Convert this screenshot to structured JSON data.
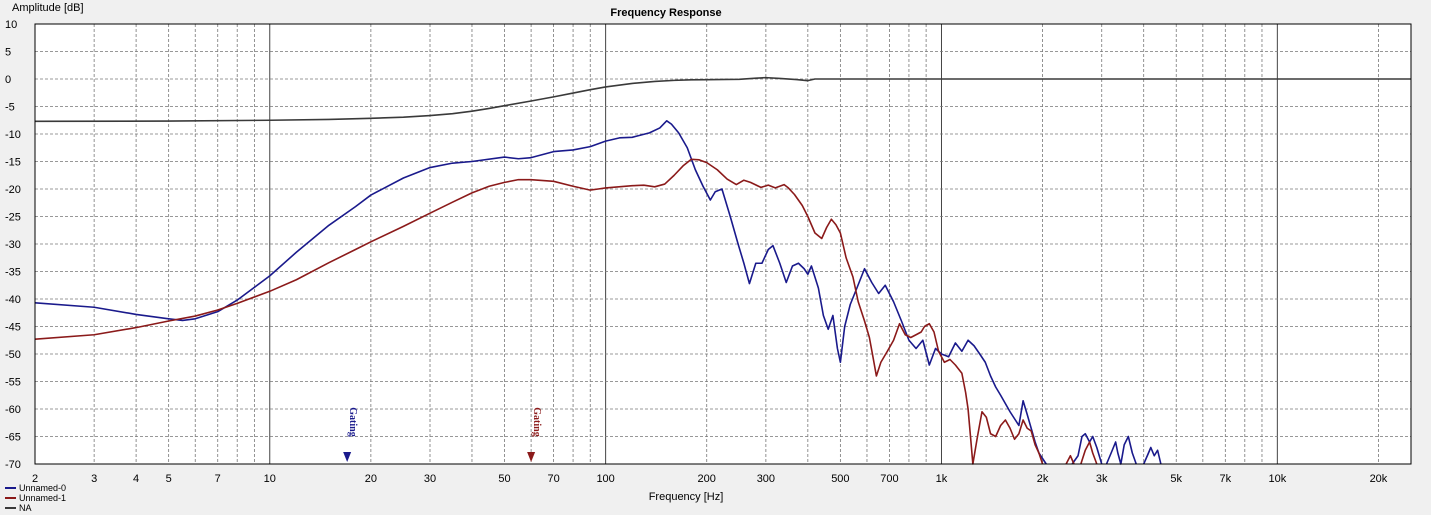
{
  "chart_data": {
    "type": "line",
    "title": "Frequency Response",
    "xlabel": "Frequency [Hz]",
    "ylabel": "Amplitude [dB]",
    "x_scale": "log",
    "xlim": [
      2,
      25000
    ],
    "ylim": [
      -70,
      10
    ],
    "grid": true,
    "legend_position": "bottom-left",
    "x_ticks": [
      {
        "value": 2,
        "label": "2"
      },
      {
        "value": 3,
        "label": "3"
      },
      {
        "value": 4,
        "label": "4"
      },
      {
        "value": 5,
        "label": "5"
      },
      {
        "value": 7,
        "label": "7"
      },
      {
        "value": 10,
        "label": "10"
      },
      {
        "value": 20,
        "label": "20"
      },
      {
        "value": 30,
        "label": "30"
      },
      {
        "value": 50,
        "label": "50"
      },
      {
        "value": 70,
        "label": "70"
      },
      {
        "value": 100,
        "label": "100"
      },
      {
        "value": 200,
        "label": "200"
      },
      {
        "value": 300,
        "label": "300"
      },
      {
        "value": 500,
        "label": "500"
      },
      {
        "value": 700,
        "label": "700"
      },
      {
        "value": 1000,
        "label": "1k"
      },
      {
        "value": 2000,
        "label": "2k"
      },
      {
        "value": 3000,
        "label": "3k"
      },
      {
        "value": 5000,
        "label": "5k"
      },
      {
        "value": 7000,
        "label": "7k"
      },
      {
        "value": 10000,
        "label": "10k"
      },
      {
        "value": 20000,
        "label": "20k"
      }
    ],
    "y_ticks": [
      10,
      5,
      0,
      -5,
      -10,
      -15,
      -20,
      -25,
      -30,
      -35,
      -40,
      -45,
      -50,
      -55,
      -60,
      -65,
      -70
    ],
    "markers": [
      {
        "label": "Gating",
        "x": 17.0,
        "color": "#1a1a8c"
      },
      {
        "label": "Gating",
        "x": 60.0,
        "color": "#8b1a1a"
      }
    ],
    "series": [
      {
        "name": "Unnamed-0",
        "color": "#1a1a8c",
        "points": [
          [
            2,
            -40.7
          ],
          [
            3,
            -41.5
          ],
          [
            4,
            -42.8
          ],
          [
            5,
            -43.6
          ],
          [
            5.5,
            -43.9
          ],
          [
            6,
            -43.6
          ],
          [
            7,
            -42.3
          ],
          [
            8,
            -40.2
          ],
          [
            10,
            -35.8
          ],
          [
            12,
            -31.5
          ],
          [
            15,
            -26.6
          ],
          [
            18,
            -23.2
          ],
          [
            20,
            -21.1
          ],
          [
            25,
            -18.0
          ],
          [
            30,
            -16.1
          ],
          [
            35,
            -15.3
          ],
          [
            40,
            -15.0
          ],
          [
            50,
            -14.2
          ],
          [
            55,
            -14.5
          ],
          [
            60,
            -14.3
          ],
          [
            70,
            -13.2
          ],
          [
            80,
            -12.9
          ],
          [
            90,
            -12.3
          ],
          [
            100,
            -11.3
          ],
          [
            110,
            -10.7
          ],
          [
            120,
            -10.6
          ],
          [
            135,
            -9.8
          ],
          [
            145,
            -8.9
          ],
          [
            152,
            -7.6
          ],
          [
            157,
            -8.2
          ],
          [
            165,
            -9.8
          ],
          [
            175,
            -12.5
          ],
          [
            185,
            -16.5
          ],
          [
            195,
            -19.5
          ],
          [
            205,
            -22.0
          ],
          [
            212,
            -20.5
          ],
          [
            222,
            -20.0
          ],
          [
            235,
            -25.0
          ],
          [
            248,
            -30.0
          ],
          [
            258,
            -33.5
          ],
          [
            268,
            -37.2
          ],
          [
            280,
            -33.5
          ],
          [
            292,
            -33.5
          ],
          [
            305,
            -31.0
          ],
          [
            315,
            -30.3
          ],
          [
            330,
            -33.5
          ],
          [
            345,
            -37.0
          ],
          [
            360,
            -34.0
          ],
          [
            375,
            -33.5
          ],
          [
            390,
            -34.5
          ],
          [
            400,
            -35.5
          ],
          [
            410,
            -34.0
          ],
          [
            430,
            -38.0
          ],
          [
            445,
            -43.0
          ],
          [
            460,
            -45.5
          ],
          [
            475,
            -43.0
          ],
          [
            490,
            -49.0
          ],
          [
            500,
            -51.5
          ],
          [
            515,
            -45.0
          ],
          [
            535,
            -41.0
          ],
          [
            560,
            -38.0
          ],
          [
            590,
            -34.5
          ],
          [
            620,
            -37.0
          ],
          [
            650,
            -39.0
          ],
          [
            680,
            -37.5
          ],
          [
            720,
            -40.5
          ],
          [
            760,
            -44.0
          ],
          [
            800,
            -47.5
          ],
          [
            840,
            -49.0
          ],
          [
            880,
            -47.5
          ],
          [
            920,
            -52.0
          ],
          [
            960,
            -49.0
          ],
          [
            1000,
            -50.0
          ],
          [
            1050,
            -50.5
          ],
          [
            1100,
            -48.0
          ],
          [
            1150,
            -49.5
          ],
          [
            1200,
            -47.5
          ],
          [
            1250,
            -48.5
          ],
          [
            1300,
            -50.0
          ],
          [
            1350,
            -51.5
          ],
          [
            1400,
            -54.0
          ],
          [
            1450,
            -56.0
          ],
          [
            1500,
            -57.5
          ],
          [
            1600,
            -60.5
          ],
          [
            1700,
            -63.0
          ],
          [
            1750,
            -58.5
          ],
          [
            1800,
            -61.0
          ],
          [
            1900,
            -66.0
          ],
          [
            1950,
            -68.0
          ],
          [
            2050,
            -70.0
          ]
        ],
        "high_freq_segments": [
          [
            [
              2450,
              -70.0
            ],
            [
              2550,
              -68.5
            ],
            [
              2620,
              -65.0
            ],
            [
              2680,
              -64.5
            ],
            [
              2760,
              -66.0
            ],
            [
              2820,
              -65.0
            ],
            [
              2900,
              -67.0
            ],
            [
              3000,
              -70.0
            ]
          ],
          [
            [
              3100,
              -70.0
            ],
            [
              3200,
              -68.0
            ],
            [
              3300,
              -66.0
            ],
            [
              3350,
              -68.0
            ],
            [
              3420,
              -70.0
            ],
            [
              3500,
              -66.5
            ],
            [
              3600,
              -65.0
            ],
            [
              3700,
              -68.0
            ],
            [
              3800,
              -70.0
            ]
          ],
          [
            [
              4000,
              -70.0
            ],
            [
              4100,
              -68.5
            ],
            [
              4200,
              -67.0
            ],
            [
              4300,
              -68.5
            ],
            [
              4400,
              -67.5
            ],
            [
              4500,
              -70.0
            ]
          ]
        ]
      },
      {
        "name": "Unnamed-1",
        "color": "#8b1a1a",
        "points": [
          [
            2,
            -47.3
          ],
          [
            3,
            -46.5
          ],
          [
            4,
            -45.2
          ],
          [
            5,
            -44.0
          ],
          [
            6,
            -43.1
          ],
          [
            7,
            -42.0
          ],
          [
            8,
            -40.8
          ],
          [
            10,
            -38.6
          ],
          [
            12,
            -36.5
          ],
          [
            15,
            -33.4
          ],
          [
            18,
            -31.0
          ],
          [
            20,
            -29.6
          ],
          [
            25,
            -26.8
          ],
          [
            30,
            -24.4
          ],
          [
            35,
            -22.4
          ],
          [
            40,
            -20.7
          ],
          [
            45,
            -19.5
          ],
          [
            50,
            -18.8
          ],
          [
            55,
            -18.3
          ],
          [
            60,
            -18.3
          ],
          [
            70,
            -18.6
          ],
          [
            80,
            -19.5
          ],
          [
            90,
            -20.2
          ],
          [
            95,
            -20.0
          ],
          [
            100,
            -19.8
          ],
          [
            120,
            -19.4
          ],
          [
            130,
            -19.3
          ],
          [
            140,
            -19.6
          ],
          [
            150,
            -19.1
          ],
          [
            160,
            -17.5
          ],
          [
            170,
            -15.8
          ],
          [
            180,
            -14.6
          ],
          [
            190,
            -14.7
          ],
          [
            200,
            -15.2
          ],
          [
            215,
            -16.5
          ],
          [
            230,
            -18.2
          ],
          [
            245,
            -19.2
          ],
          [
            258,
            -18.4
          ],
          [
            270,
            -18.8
          ],
          [
            290,
            -19.7
          ],
          [
            305,
            -19.3
          ],
          [
            320,
            -19.8
          ],
          [
            340,
            -19.2
          ],
          [
            350,
            -19.8
          ],
          [
            365,
            -21.0
          ],
          [
            385,
            -23.0
          ],
          [
            400,
            -25.0
          ],
          [
            420,
            -28.0
          ],
          [
            440,
            -29.0
          ],
          [
            455,
            -27.0
          ],
          [
            470,
            -25.5
          ],
          [
            485,
            -26.5
          ],
          [
            500,
            -28.0
          ],
          [
            520,
            -32.5
          ],
          [
            545,
            -36.0
          ],
          [
            565,
            -40.5
          ],
          [
            590,
            -44.0
          ],
          [
            610,
            -47.0
          ],
          [
            625,
            -50.5
          ],
          [
            640,
            -54.0
          ],
          [
            660,
            -51.5
          ],
          [
            690,
            -49.5
          ],
          [
            720,
            -47.5
          ],
          [
            750,
            -44.5
          ],
          [
            780,
            -46.5
          ],
          [
            810,
            -47.0
          ],
          [
            840,
            -46.5
          ],
          [
            870,
            -46.0
          ],
          [
            890,
            -45.0
          ],
          [
            920,
            -44.5
          ],
          [
            950,
            -46.0
          ],
          [
            980,
            -49.5
          ],
          [
            1020,
            -51.5
          ],
          [
            1060,
            -51.0
          ],
          [
            1100,
            -52.0
          ],
          [
            1150,
            -53.5
          ],
          [
            1180,
            -57.0
          ],
          [
            1200,
            -60.0
          ],
          [
            1220,
            -65.0
          ],
          [
            1240,
            -70.0
          ],
          [
            1280,
            -65.0
          ],
          [
            1320,
            -60.5
          ],
          [
            1360,
            -61.5
          ],
          [
            1400,
            -64.5
          ],
          [
            1450,
            -65.0
          ],
          [
            1500,
            -63.0
          ],
          [
            1550,
            -62.0
          ],
          [
            1600,
            -63.5
          ],
          [
            1650,
            -65.5
          ],
          [
            1700,
            -64.5
          ],
          [
            1750,
            -62.0
          ],
          [
            1800,
            -63.5
          ],
          [
            1850,
            -64.0
          ],
          [
            1900,
            -66.5
          ],
          [
            1950,
            -68.0
          ],
          [
            2000,
            -70.0
          ]
        ],
        "high_freq_segments": [
          [
            [
              2350,
              -70.0
            ],
            [
              2420,
              -68.5
            ],
            [
              2480,
              -70.0
            ]
          ],
          [
            [
              2600,
              -70.0
            ],
            [
              2680,
              -67.5
            ],
            [
              2760,
              -66.0
            ],
            [
              2820,
              -68.0
            ],
            [
              2900,
              -70.0
            ]
          ]
        ]
      },
      {
        "name": "NA",
        "color": "#3a3a3a",
        "points": [
          [
            2,
            -7.7
          ],
          [
            5,
            -7.65
          ],
          [
            10,
            -7.5
          ],
          [
            15,
            -7.35
          ],
          [
            20,
            -7.15
          ],
          [
            25,
            -6.95
          ],
          [
            30,
            -6.65
          ],
          [
            35,
            -6.3
          ],
          [
            40,
            -5.85
          ],
          [
            45,
            -5.35
          ],
          [
            50,
            -4.85
          ],
          [
            60,
            -4.0
          ],
          [
            70,
            -3.25
          ],
          [
            80,
            -2.55
          ],
          [
            90,
            -1.95
          ],
          [
            100,
            -1.45
          ],
          [
            120,
            -0.8
          ],
          [
            140,
            -0.45
          ],
          [
            160,
            -0.25
          ],
          [
            180,
            -0.15
          ],
          [
            200,
            -0.12
          ],
          [
            230,
            -0.08
          ],
          [
            250,
            -0.05
          ],
          [
            280,
            0.15
          ],
          [
            300,
            0.25
          ],
          [
            330,
            0.1
          ],
          [
            370,
            -0.1
          ],
          [
            400,
            -0.3
          ],
          [
            420,
            0.0
          ],
          [
            500,
            0.0
          ],
          [
            1000,
            0.0
          ],
          [
            5000,
            0.0
          ],
          [
            25000,
            0.0
          ]
        ]
      }
    ]
  }
}
